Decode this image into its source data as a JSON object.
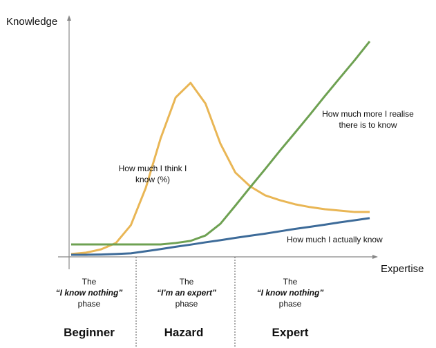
{
  "chart_data": {
    "type": "line",
    "y_label": "Knowledge",
    "x_label": "Expertise",
    "x": [
      0,
      1,
      2,
      3,
      4,
      5,
      6,
      7,
      8,
      9,
      10,
      11,
      12,
      13,
      14,
      15,
      16,
      17,
      18,
      19,
      20
    ],
    "xlim": [
      0,
      20
    ],
    "ylim": [
      0,
      100
    ],
    "series": [
      {
        "name": "How much I think I know (%)",
        "color": "#e9b655",
        "values": [
          1.2,
          1.8,
          3.2,
          5.9,
          13.5,
          29.4,
          50.6,
          67.9,
          74.1,
          65.3,
          48.2,
          35.9,
          30,
          26.2,
          24.1,
          22.4,
          21.2,
          20.3,
          19.7,
          19.1,
          19.1
        ]
      },
      {
        "name": "How much more I realise there is to know",
        "color": "#6ea152",
        "values": [
          5.3,
          5.3,
          5.3,
          5.3,
          5.3,
          5.3,
          5.3,
          5.9,
          6.8,
          9.1,
          14.1,
          21.8,
          29.7,
          37.4,
          45.3,
          52.9,
          60.6,
          68.5,
          76.2,
          83.8,
          91.8
        ]
      },
      {
        "name": "How much I actually know",
        "color": "#3d6b99",
        "values": [
          0.9,
          0.9,
          1.0,
          1.2,
          1.5,
          2.4,
          3.3,
          4.3,
          5.2,
          6.2,
          7.1,
          8.1,
          9.0,
          9.9,
          10.9,
          11.9,
          12.8,
          13.7,
          14.7,
          15.6,
          16.5
        ]
      }
    ],
    "phases": [
      {
        "intro": "The",
        "quote": "“I know nothing”",
        "suffix": "phase",
        "name": "Beginner"
      },
      {
        "intro": "The",
        "quote": "“I’m an expert”",
        "suffix": "phase",
        "name": "Hazard"
      },
      {
        "intro": "The",
        "quote": "“I know nothing”",
        "suffix": "phase",
        "name": "Expert"
      }
    ]
  }
}
